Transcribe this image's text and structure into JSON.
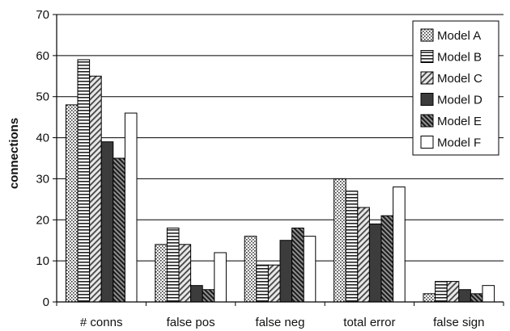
{
  "chart_data": {
    "type": "bar",
    "title": "",
    "xlabel": "",
    "ylabel": "connections",
    "ylim": [
      0,
      70
    ],
    "yticks": [
      0,
      10,
      20,
      30,
      40,
      50,
      60,
      70
    ],
    "grid": "horizontal",
    "legend_position": "top-right",
    "categories": [
      "# conns",
      "false pos",
      "false neg",
      "total error",
      "false sign"
    ],
    "series": [
      {
        "name": "Model A",
        "pattern": "dots",
        "values": [
          48,
          14,
          16,
          30,
          2
        ]
      },
      {
        "name": "Model B",
        "pattern": "horizontal-lines",
        "values": [
          59,
          18,
          9,
          27,
          5
        ]
      },
      {
        "name": "Model C",
        "pattern": "diagonal-lines",
        "values": [
          55,
          14,
          9,
          23,
          5
        ]
      },
      {
        "name": "Model D",
        "pattern": "solid-dark",
        "values": [
          39,
          4,
          15,
          19,
          3
        ]
      },
      {
        "name": "Model E",
        "pattern": "dark-diagonal",
        "values": [
          35,
          3,
          18,
          21,
          2
        ]
      },
      {
        "name": "Model F",
        "pattern": "white",
        "values": [
          46,
          12,
          16,
          28,
          4
        ]
      }
    ]
  }
}
